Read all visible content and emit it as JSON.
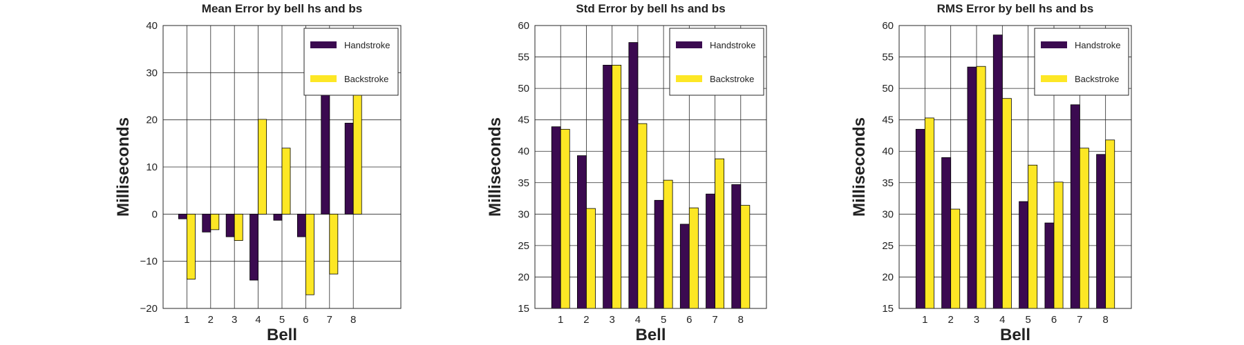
{
  "chart_data": [
    {
      "type": "bar",
      "title": "Mean Error by bell hs and bs",
      "xlabel": "Bell",
      "ylabel": "Milliseconds",
      "categories": [
        "1",
        "2",
        "3",
        "4",
        "5",
        "6",
        "7",
        "8"
      ],
      "xlim": [
        0,
        10
      ],
      "ylim": [
        -20,
        40
      ],
      "yticks": [
        -20,
        -10,
        0,
        10,
        20,
        30,
        40
      ],
      "ytick_labels": [
        "−20",
        "−10",
        "0",
        "10",
        "20",
        "30",
        "40"
      ],
      "grid": true,
      "legend_position": "top-right",
      "series": [
        {
          "name": "Handstroke",
          "color": "#3b0a50",
          "values": [
            -1.0,
            -3.8,
            -4.8,
            -14.0,
            -1.3,
            -4.8,
            34.3,
            19.3
          ]
        },
        {
          "name": "Backstroke",
          "color": "#fde725",
          "values": [
            -13.8,
            -3.3,
            -5.6,
            20.1,
            14.0,
            -17.1,
            -12.7,
            27.9
          ]
        }
      ]
    },
    {
      "type": "bar",
      "title": "Std Error by bell hs and bs",
      "xlabel": "Bell",
      "ylabel": "Milliseconds",
      "categories": [
        "1",
        "2",
        "3",
        "4",
        "5",
        "6",
        "7",
        "8"
      ],
      "xlim": [
        0,
        9
      ],
      "ylim": [
        15,
        60
      ],
      "yticks": [
        15,
        20,
        25,
        30,
        35,
        40,
        45,
        50,
        55,
        60
      ],
      "ytick_labels": [
        "15",
        "20",
        "25",
        "30",
        "35",
        "40",
        "45",
        "50",
        "55",
        "60"
      ],
      "grid": true,
      "legend_position": "top-right",
      "series": [
        {
          "name": "Handstroke",
          "color": "#3b0a50",
          "values": [
            43.9,
            39.3,
            53.7,
            57.3,
            32.2,
            28.4,
            33.2,
            34.7
          ]
        },
        {
          "name": "Backstroke",
          "color": "#fde725",
          "values": [
            43.5,
            30.9,
            53.7,
            44.4,
            35.4,
            31.0,
            38.8,
            31.4
          ]
        }
      ]
    },
    {
      "type": "bar",
      "title": "RMS Error by bell hs and bs",
      "xlabel": "Bell",
      "ylabel": "Milliseconds",
      "categories": [
        "1",
        "2",
        "3",
        "4",
        "5",
        "6",
        "7",
        "8"
      ],
      "xlim": [
        0,
        9
      ],
      "ylim": [
        15,
        60
      ],
      "yticks": [
        15,
        20,
        25,
        30,
        35,
        40,
        45,
        50,
        55,
        60
      ],
      "ytick_labels": [
        "15",
        "20",
        "25",
        "30",
        "35",
        "40",
        "45",
        "50",
        "55",
        "60"
      ],
      "grid": true,
      "legend_position": "top-right",
      "series": [
        {
          "name": "Handstroke",
          "color": "#3b0a50",
          "values": [
            43.5,
            39.0,
            53.4,
            58.5,
            32.0,
            28.6,
            47.4,
            39.5
          ]
        },
        {
          "name": "Backstroke",
          "color": "#fde725",
          "values": [
            45.3,
            30.8,
            53.5,
            48.4,
            37.8,
            35.1,
            40.5,
            41.8
          ]
        }
      ]
    }
  ]
}
